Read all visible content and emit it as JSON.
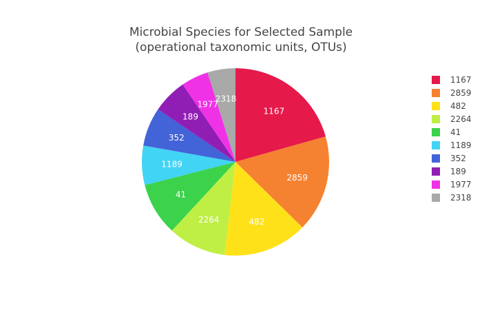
{
  "chart_data": {
    "type": "pie",
    "title": "Microbial Species for Selected Sample",
    "subtitle": "(operational taxonomic units, OTUs)",
    "slices": [
      {
        "label": "1167",
        "value": 21.0,
        "color": "#e6194b"
      },
      {
        "label": "2859",
        "value": 17.0,
        "color": "#f58231"
      },
      {
        "label": "482",
        "value": 14.8,
        "color": "#ffe119"
      },
      {
        "label": "2264",
        "value": 10.2,
        "color": "#bfef45"
      },
      {
        "label": "41",
        "value": 9.3,
        "color": "#3cd24c"
      },
      {
        "label": "1189",
        "value": 6.9,
        "color": "#42d4f4"
      },
      {
        "label": "352",
        "value": 6.8,
        "color": "#4363d8"
      },
      {
        "label": "189",
        "value": 6.1,
        "color": "#911eb4"
      },
      {
        "label": "1977",
        "value": 4.8,
        "color": "#f032e6"
      },
      {
        "label": "2318",
        "value": 4.9,
        "color": "#a9a9a9"
      }
    ],
    "legend": {
      "placement": "right",
      "entries": [
        "1167",
        "2859",
        "482",
        "2264",
        "41",
        "1189",
        "352",
        "189",
        "1977",
        "2318"
      ]
    }
  }
}
